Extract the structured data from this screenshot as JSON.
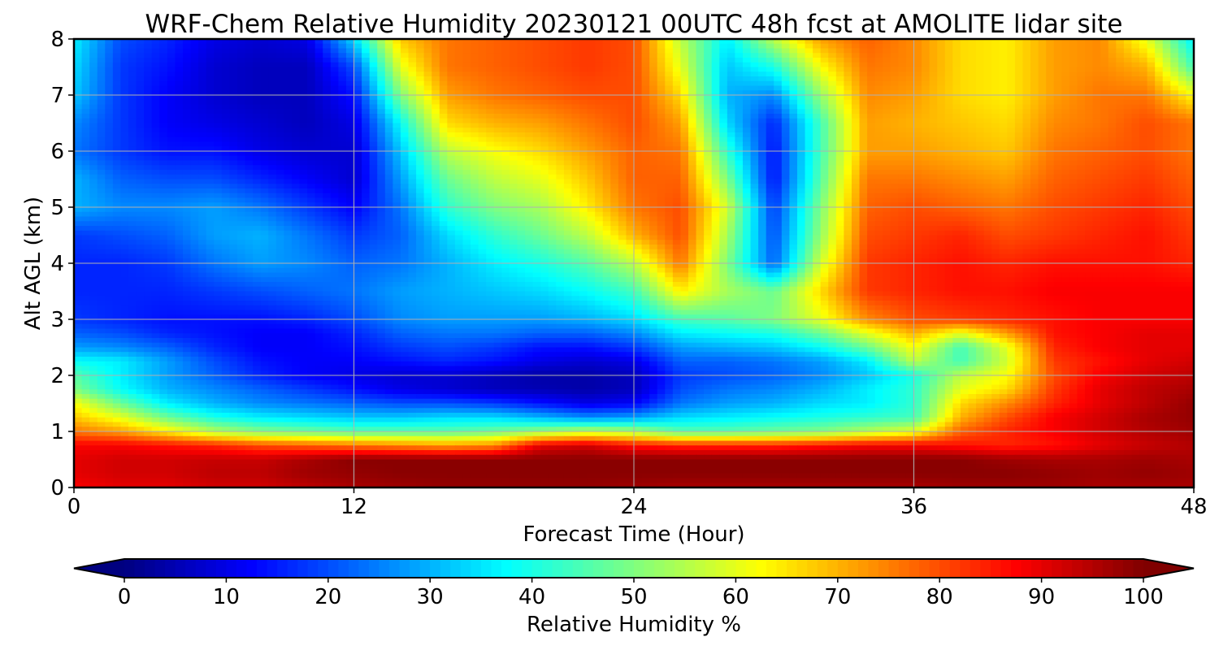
{
  "chart_data": {
    "type": "heatmap",
    "title": "WRF-Chem Relative Humidity 20230121 00UTC 48h fcst at AMOLITE lidar site",
    "xlabel": "Forecast Time (Hour)",
    "ylabel": "Alt AGL (km)",
    "xlim": [
      0,
      48
    ],
    "ylim": [
      0,
      8
    ],
    "xticks": [
      "0",
      "12",
      "24",
      "36",
      "48"
    ],
    "yticks": [
      "0",
      "1",
      "2",
      "3",
      "4",
      "5",
      "6",
      "7",
      "8"
    ],
    "grid": true,
    "colormap": "jet",
    "colorbar": {
      "label": "Relative Humidity %",
      "range": [
        0,
        100
      ],
      "ticks": [
        "0",
        "10",
        "20",
        "30",
        "40",
        "50",
        "60",
        "70",
        "80",
        "90",
        "100"
      ],
      "extend": "both",
      "orientation": "horizontal"
    },
    "x": [
      0,
      2,
      4,
      6,
      8,
      10,
      12,
      14,
      16,
      18,
      20,
      22,
      24,
      26,
      28,
      30,
      32,
      34,
      36,
      38,
      40,
      42,
      44,
      46,
      48
    ],
    "y": [
      0,
      0.25,
      0.5,
      0.75,
      1,
      1.25,
      1.5,
      1.75,
      2,
      2.25,
      2.5,
      2.75,
      3,
      3.5,
      4,
      4.5,
      5,
      5.5,
      6,
      6.5,
      7,
      7.5,
      8
    ],
    "z": [
      [
        88,
        90,
        90,
        92,
        92,
        94,
        96,
        97,
        98,
        98,
        98,
        98,
        97,
        96,
        96,
        96,
        96,
        96,
        96,
        97,
        97,
        97,
        96,
        96,
        96
      ],
      [
        90,
        92,
        92,
        94,
        94,
        97,
        98,
        99,
        99,
        99,
        99,
        99,
        99,
        99,
        99,
        99,
        99,
        99,
        99,
        99,
        99,
        98,
        97,
        98,
        97
      ],
      [
        90,
        92,
        92,
        93,
        93,
        96,
        99,
        99,
        99,
        99,
        99,
        99,
        99,
        99,
        99,
        99,
        99,
        99,
        99,
        99,
        97,
        96,
        96,
        97,
        96
      ],
      [
        88,
        88,
        86,
        84,
        80,
        78,
        76,
        74,
        72,
        74,
        90,
        92,
        86,
        84,
        84,
        84,
        86,
        88,
        88,
        86,
        84,
        86,
        90,
        93,
        95
      ],
      [
        76,
        72,
        64,
        55,
        50,
        48,
        46,
        46,
        46,
        48,
        52,
        56,
        54,
        46,
        46,
        48,
        50,
        55,
        60,
        78,
        84,
        88,
        92,
        95,
        97
      ],
      [
        68,
        60,
        48,
        40,
        36,
        34,
        32,
        32,
        34,
        34,
        30,
        26,
        28,
        34,
        36,
        38,
        40,
        42,
        44,
        70,
        80,
        88,
        92,
        96,
        98
      ],
      [
        62,
        48,
        36,
        30,
        26,
        24,
        22,
        20,
        20,
        18,
        14,
        10,
        12,
        24,
        28,
        30,
        34,
        36,
        42,
        66,
        74,
        84,
        90,
        94,
        98
      ],
      [
        50,
        38,
        30,
        26,
        22,
        18,
        14,
        10,
        8,
        6,
        5,
        4,
        6,
        20,
        24,
        26,
        30,
        36,
        42,
        60,
        66,
        82,
        90,
        94,
        96
      ],
      [
        46,
        36,
        28,
        22,
        16,
        12,
        10,
        8,
        8,
        6,
        4,
        4,
        6,
        18,
        20,
        22,
        26,
        32,
        40,
        56,
        62,
        80,
        88,
        92,
        94
      ],
      [
        38,
        36,
        28,
        20,
        14,
        12,
        12,
        14,
        16,
        14,
        10,
        8,
        10,
        22,
        22,
        24,
        28,
        36,
        56,
        44,
        58,
        82,
        86,
        90,
        92
      ],
      [
        28,
        26,
        22,
        16,
        12,
        12,
        14,
        18,
        20,
        18,
        14,
        14,
        18,
        28,
        30,
        32,
        38,
        48,
        62,
        44,
        60,
        84,
        88,
        90,
        90
      ],
      [
        22,
        20,
        16,
        14,
        12,
        12,
        16,
        22,
        24,
        24,
        22,
        22,
        26,
        36,
        38,
        40,
        48,
        60,
        70,
        60,
        72,
        86,
        88,
        90,
        90
      ],
      [
        18,
        16,
        14,
        14,
        14,
        16,
        20,
        26,
        28,
        28,
        28,
        30,
        34,
        44,
        46,
        50,
        60,
        74,
        80,
        82,
        84,
        86,
        88,
        88,
        88
      ],
      [
        16,
        16,
        16,
        18,
        20,
        22,
        24,
        28,
        30,
        32,
        34,
        38,
        44,
        64,
        54,
        48,
        66,
        82,
        84,
        86,
        86,
        88,
        88,
        88,
        88
      ],
      [
        16,
        16,
        18,
        24,
        28,
        26,
        22,
        24,
        30,
        36,
        40,
        46,
        56,
        76,
        50,
        22,
        58,
        82,
        84,
        86,
        84,
        86,
        86,
        86,
        84
      ],
      [
        18,
        20,
        22,
        28,
        30,
        24,
        18,
        22,
        34,
        42,
        48,
        56,
        70,
        80,
        54,
        20,
        52,
        80,
        82,
        84,
        80,
        82,
        84,
        86,
        82
      ],
      [
        30,
        26,
        26,
        28,
        24,
        18,
        12,
        24,
        42,
        50,
        54,
        64,
        76,
        80,
        58,
        18,
        50,
        78,
        80,
        78,
        76,
        80,
        82,
        84,
        80
      ],
      [
        30,
        22,
        20,
        20,
        16,
        12,
        8,
        28,
        48,
        56,
        60,
        68,
        78,
        78,
        50,
        14,
        46,
        76,
        76,
        74,
        72,
        78,
        80,
        82,
        78
      ],
      [
        24,
        18,
        14,
        14,
        10,
        8,
        8,
        32,
        56,
        62,
        66,
        72,
        78,
        76,
        42,
        14,
        44,
        72,
        72,
        70,
        68,
        76,
        78,
        80,
        76
      ],
      [
        26,
        18,
        12,
        10,
        8,
        6,
        10,
        38,
        66,
        70,
        72,
        76,
        80,
        72,
        34,
        16,
        44,
        72,
        70,
        68,
        66,
        74,
        76,
        80,
        76
      ],
      [
        32,
        18,
        12,
        8,
        6,
        6,
        14,
        50,
        72,
        76,
        78,
        80,
        80,
        66,
        30,
        26,
        52,
        74,
        72,
        66,
        64,
        72,
        76,
        76,
        62
      ],
      [
        34,
        18,
        14,
        8,
        6,
        6,
        20,
        60,
        76,
        78,
        80,
        82,
        80,
        60,
        32,
        40,
        62,
        76,
        74,
        66,
        64,
        72,
        74,
        70,
        44
      ],
      [
        36,
        20,
        16,
        10,
        8,
        10,
        34,
        68,
        76,
        78,
        80,
        82,
        80,
        56,
        36,
        56,
        72,
        78,
        74,
        66,
        64,
        72,
        74,
        60,
        36
      ]
    ]
  }
}
